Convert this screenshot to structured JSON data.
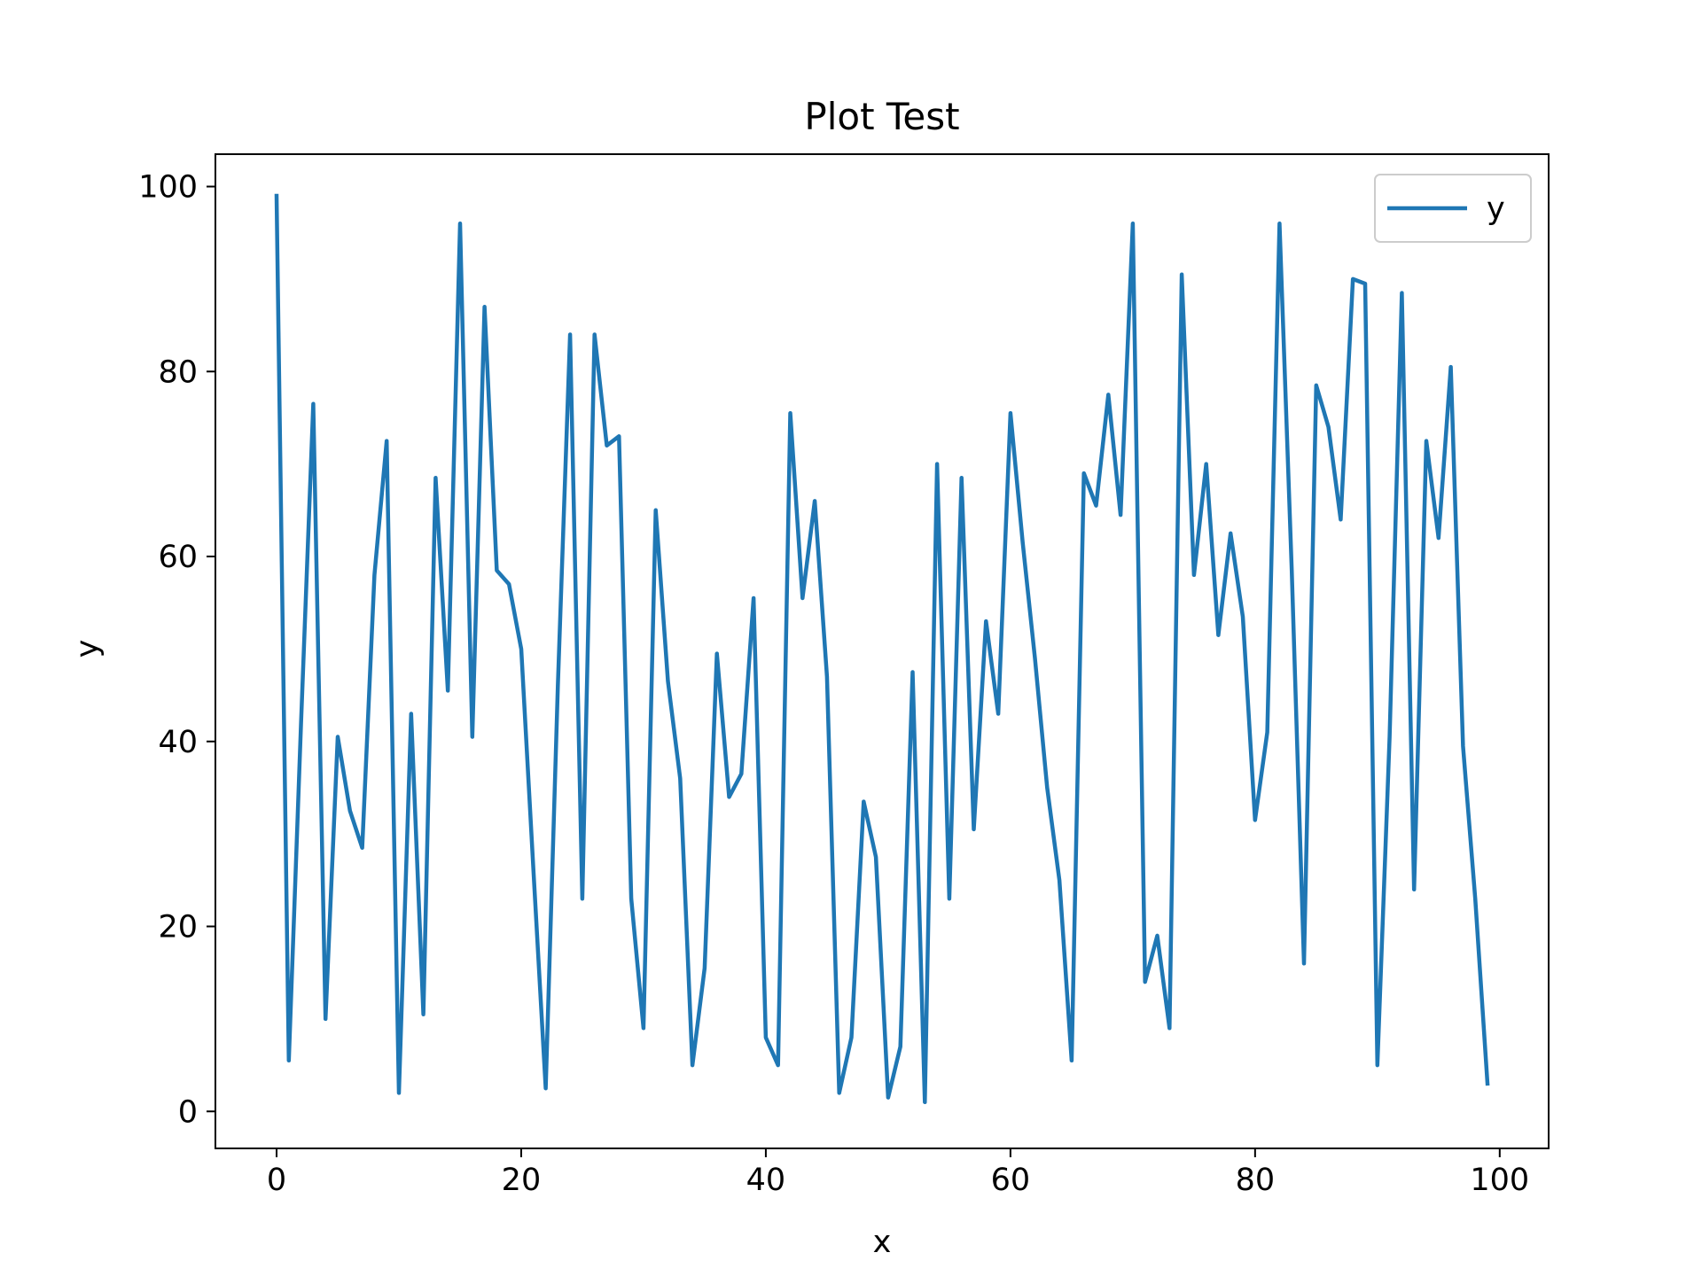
{
  "chart_data": {
    "type": "line",
    "title": "Plot Test",
    "xlabel": "x",
    "ylabel": "y",
    "xlim": [
      -5,
      104
    ],
    "ylim": [
      -4,
      103.5
    ],
    "xticks": [
      0,
      20,
      40,
      60,
      80,
      100
    ],
    "yticks": [
      0,
      20,
      40,
      60,
      80,
      100
    ],
    "grid": false,
    "legend": {
      "position": "top-right",
      "entries": [
        "y"
      ]
    },
    "series": [
      {
        "name": "y",
        "color": "#1f77b4",
        "x": [
          0,
          1,
          2,
          3,
          4,
          5,
          6,
          7,
          8,
          9,
          10,
          11,
          12,
          13,
          14,
          15,
          16,
          17,
          18,
          19,
          20,
          21,
          22,
          23,
          24,
          25,
          26,
          27,
          28,
          29,
          30,
          31,
          32,
          33,
          34,
          35,
          36,
          37,
          38,
          39,
          40,
          41,
          42,
          43,
          44,
          45,
          46,
          47,
          48,
          49,
          50,
          51,
          52,
          53,
          54,
          55,
          56,
          57,
          58,
          59,
          60,
          61,
          62,
          63,
          64,
          65,
          66,
          67,
          68,
          69,
          70,
          71,
          72,
          73,
          74,
          75,
          76,
          77,
          78,
          79,
          80,
          81,
          82,
          83,
          84,
          85,
          86,
          87,
          88,
          89,
          90,
          91,
          92,
          93,
          94,
          95,
          96,
          97,
          98,
          99
        ],
        "values": [
          99,
          5.5,
          42,
          76.5,
          10,
          40.5,
          32.5,
          28.5,
          58,
          72.5,
          2,
          43,
          10.5,
          68.5,
          45.5,
          96,
          40.5,
          87,
          58.5,
          57,
          50,
          26,
          2.5,
          46,
          84,
          23,
          84,
          72,
          73,
          23,
          9,
          65,
          46.5,
          36,
          5,
          15.5,
          49.5,
          34,
          36.5,
          55.5,
          8,
          5,
          75.5,
          55.5,
          66,
          47,
          2,
          8,
          33.5,
          27.5,
          1.5,
          7,
          47.5,
          1,
          70,
          23,
          68.5,
          30.5,
          53,
          43,
          75.5,
          61.5,
          49,
          35,
          25,
          5.5,
          69,
          65.5,
          77.5,
          64.5,
          96,
          14,
          19,
          9,
          90.5,
          58,
          70,
          51.5,
          62.5,
          53.5,
          31.5,
          41,
          96,
          58.5,
          16,
          78.5,
          74,
          64,
          90,
          89.5,
          5,
          40.5,
          88.5,
          24,
          72.5,
          62,
          80.5,
          39.5,
          23,
          3
        ]
      }
    ]
  }
}
